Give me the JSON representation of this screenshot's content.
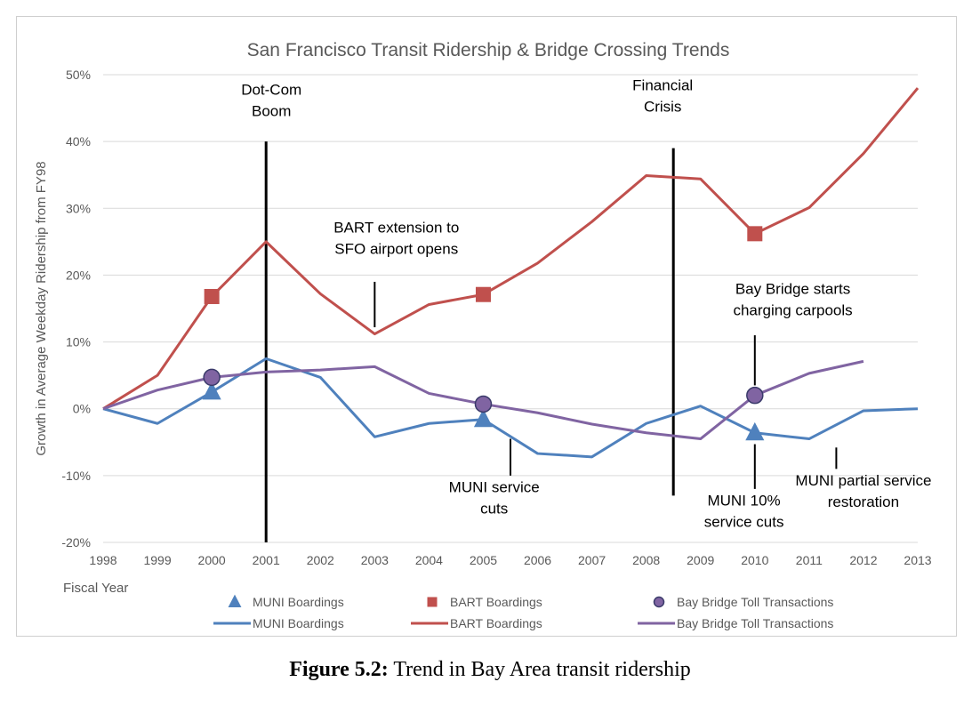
{
  "colors": {
    "muni": "#4f81bd",
    "bart": "#c0504d",
    "bay_bridge": "#8064a2",
    "grid": "#d9d9d9",
    "text": "#595959"
  },
  "caption": {
    "label": "Figure 5.2:",
    "text": " Trend in Bay Area transit ridership"
  },
  "chart_data": {
    "type": "line",
    "title": "San Francisco Transit Ridership & Bridge Crossing Trends",
    "ylabel": "Growth in Average Weekday Ridership from FY98",
    "xlabel": "Fiscal Year",
    "ylim": [
      -20,
      50
    ],
    "yticks": [
      -20,
      -10,
      0,
      10,
      20,
      30,
      40,
      50
    ],
    "ytick_labels": [
      "-20%",
      "-10%",
      "0%",
      "10%",
      "20%",
      "30%",
      "40%",
      "50%"
    ],
    "categories": [
      "1998",
      "1999",
      "2000",
      "2001",
      "2002",
      "2003",
      "2004",
      "2005",
      "2006",
      "2007",
      "2008",
      "2009",
      "2010",
      "2011",
      "2012",
      "2013"
    ],
    "grid": "horizontal",
    "series": [
      {
        "name": "MUNI Boardings",
        "color_key": "muni",
        "values": [
          0,
          -2.2,
          2.5,
          7.5,
          4.7,
          -4.2,
          -2.2,
          -1.6,
          -6.7,
          -7.2,
          -2.2,
          0.4,
          -3.6,
          -4.5,
          -0.3,
          0
        ],
        "marker": "triangle",
        "marker_points": [
          {
            "x": "2000",
            "y": 2.5
          },
          {
            "x": "2005",
            "y": -1.6
          },
          {
            "x": "2010",
            "y": -3.6
          }
        ]
      },
      {
        "name": "BART Boardings",
        "color_key": "bart",
        "values": [
          0,
          5,
          16.8,
          25,
          17.2,
          11.2,
          15.6,
          17.1,
          21.8,
          28,
          34.9,
          34.4,
          26.2,
          30.1,
          38.2,
          48
        ],
        "marker": "square",
        "marker_points": [
          {
            "x": "2000",
            "y": 16.8
          },
          {
            "x": "2005",
            "y": 17.1
          },
          {
            "x": "2010",
            "y": 26.2
          }
        ]
      },
      {
        "name": "Bay Bridge Toll Transactions",
        "color_key": "bay_bridge",
        "values": [
          0,
          2.8,
          4.7,
          5.5,
          5.8,
          6.3,
          2.3,
          0.7,
          -0.6,
          -2.3,
          -3.6,
          -4.5,
          2,
          5.3,
          7.1,
          null
        ],
        "marker": "circle",
        "marker_points": [
          {
            "x": "2000",
            "y": 4.7
          },
          {
            "x": "2005",
            "y": 0.7
          },
          {
            "x": "2010",
            "y": 2
          }
        ]
      }
    ],
    "legend_marker_row": [
      "MUNI Boardings",
      "BART Boardings",
      "Bay Bridge Toll Transactions"
    ],
    "legend_line_row": [
      "MUNI Boardings",
      "BART Boardings",
      "Bay Bridge Toll Transactions"
    ],
    "legend_placement": "bottom",
    "annotations": [
      {
        "id": "dotcom",
        "lines": [
          "Dot-Com",
          "Boom"
        ],
        "x": 2001,
        "line_from": 40,
        "line_to": -20
      },
      {
        "id": "financial",
        "lines": [
          "Financial",
          "Crisis"
        ],
        "x": 2008.5,
        "line_from": 39,
        "line_to": -13
      },
      {
        "id": "bart-sfo",
        "lines": [
          "BART extension to",
          "SFO airport opens"
        ],
        "x": 2003,
        "line_from": 19,
        "line_to": 12.2
      },
      {
        "id": "bay-carpool",
        "lines": [
          "Bay Bridge starts",
          "charging carpools"
        ],
        "x": 2010,
        "line_from": 11,
        "line_to": 3.5
      },
      {
        "id": "muni-cuts",
        "lines": [
          "MUNI service",
          "cuts"
        ],
        "x": 2005.5,
        "line_from": -4.5,
        "line_to": -10
      },
      {
        "id": "muni-10",
        "lines": [
          "MUNI 10%",
          "service cuts"
        ],
        "x": 2010,
        "line_from": -5.3,
        "line_to": -12
      },
      {
        "id": "muni-restore",
        "lines": [
          "MUNI partial service",
          "restoration"
        ],
        "x": 2011.5,
        "line_from": -5.8,
        "line_to": -9
      }
    ]
  }
}
